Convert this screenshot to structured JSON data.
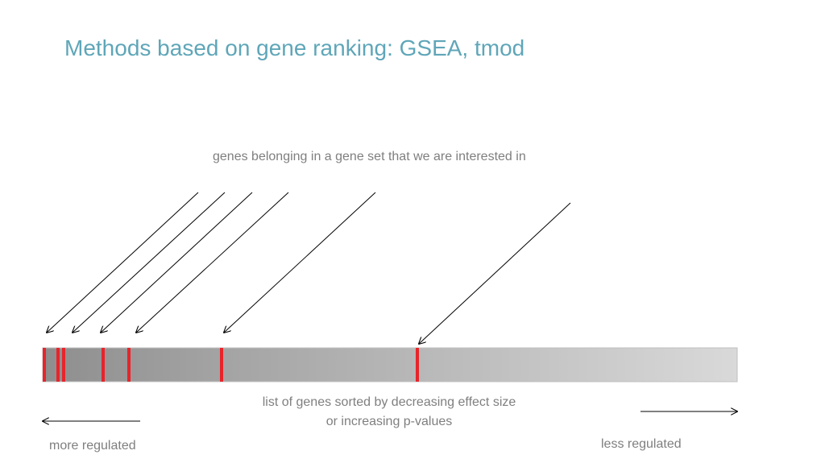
{
  "slide": {
    "title": "Methods based on gene ranking: GSEA, tmod",
    "annotation": "genes belonging in a gene set that we are interested in",
    "caption_line1": "list of genes sorted by decreasing effect size",
    "caption_line2": "or increasing p-values",
    "left_label": "more regulated",
    "right_label": "less regulated"
  },
  "colors": {
    "title": "#5fa6b8",
    "text": "#7f7f7f",
    "marker": "#e8242b",
    "bar_dark": "#8e8e8e",
    "bar_light": "#d9d9d9",
    "arrow": "#000000"
  }
}
